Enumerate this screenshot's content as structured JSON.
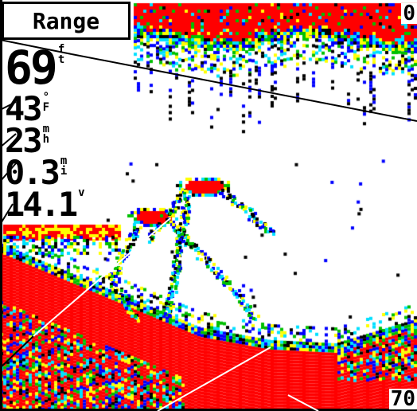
{
  "range_button": {
    "label": "Range"
  },
  "readouts": {
    "depth": {
      "value": "69",
      "unit": [
        "f",
        "t"
      ]
    },
    "water_temperature": {
      "value": "43",
      "unit": [
        "°",
        "F"
      ]
    },
    "speed": {
      "value": "23",
      "unit": [
        "m",
        "h"
      ]
    },
    "distance": {
      "value": "0.3",
      "unit": [
        "m",
        "i"
      ]
    },
    "voltage": {
      "value": "14.1",
      "unit": [
        "v"
      ]
    }
  },
  "depth_scale": {
    "top": "0",
    "bottom": "70"
  },
  "colors": {
    "strong_return": "#ff0000",
    "return_yellow": "#ffff00",
    "return_green": "#00c000",
    "return_cyan": "#00e0ff",
    "return_blue": "#0000ff",
    "weak_return": "#000000",
    "background": "#ffffff"
  }
}
